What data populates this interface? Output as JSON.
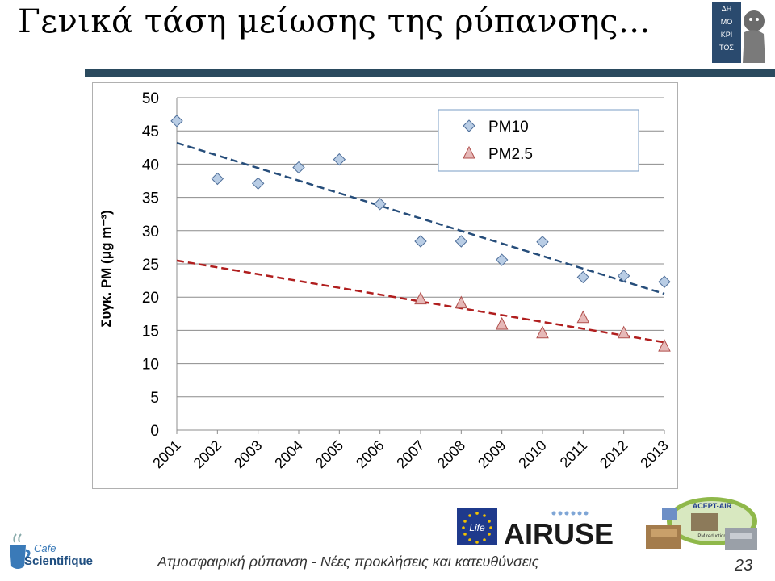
{
  "slide": {
    "title": "Γενικά τάση μείωσης της ρύπανσης...",
    "footer": "Ατμοσφαιρική ρύπανση - Νέες προκλήσεις και κατευθύνσεις",
    "page_number": "23"
  },
  "logos": {
    "democritus_text": "ΔΗΜΟΚΡΙΤΟΣ",
    "cafe_line1": "Cafe",
    "cafe_line2": "Scientifique",
    "airuse_text": "AIRUSE",
    "life_text": "Life",
    "acept_title": "ACEPT-AIR",
    "acept_sub": "PM reduction"
  },
  "colors": {
    "pm10_fill": "#b9cde5",
    "pm10_stroke": "#4f6f9a",
    "pm25_fill": "#e6b9b8",
    "pm25_stroke": "#b0504d",
    "trend_pm10": "#264d7a",
    "trend_pm25": "#b01e1e",
    "title_rule": "#2a4a5e",
    "airuse_blue": "#1f3a8c"
  },
  "chart_data": {
    "type": "scatter",
    "title": "",
    "xlabel": "",
    "ylabel": "Συγκ. PM (μg m⁻³)",
    "ylim": [
      0,
      50
    ],
    "yticks": [
      0,
      5,
      10,
      15,
      20,
      25,
      30,
      35,
      40,
      45,
      50
    ],
    "categories": [
      "2001",
      "2002",
      "2003",
      "2004",
      "2005",
      "2006",
      "2007",
      "2008",
      "2009",
      "2010",
      "2011",
      "2012",
      "2013"
    ],
    "grid": "horizontal",
    "legend_position": "top-right",
    "series": [
      {
        "name": "PM10",
        "marker": "diamond",
        "points": [
          [
            "2001",
            46.5
          ],
          [
            "2002",
            37.8
          ],
          [
            "2003",
            37.1
          ],
          [
            "2004",
            39.5
          ],
          [
            "2005",
            40.7
          ],
          [
            "2006",
            34.0
          ],
          [
            "2007",
            28.4
          ],
          [
            "2008",
            28.4
          ],
          [
            "2009",
            25.6
          ],
          [
            "2010",
            28.3
          ],
          [
            "2011",
            23.0
          ],
          [
            "2012",
            23.2
          ],
          [
            "2013",
            22.3
          ]
        ],
        "trend": {
          "start": [
            "2001",
            43.2
          ],
          "end": [
            "2013",
            20.5
          ]
        }
      },
      {
        "name": "PM2.5",
        "marker": "triangle",
        "points": [
          [
            "2007",
            19.7
          ],
          [
            "2008",
            19.1
          ],
          [
            "2009",
            15.9
          ],
          [
            "2010",
            14.6
          ],
          [
            "2011",
            16.9
          ],
          [
            "2012",
            14.6
          ],
          [
            "2013",
            12.6
          ]
        ],
        "trend": {
          "start": [
            "2001",
            25.5
          ],
          "end": [
            "2013",
            13.2
          ]
        }
      }
    ]
  }
}
